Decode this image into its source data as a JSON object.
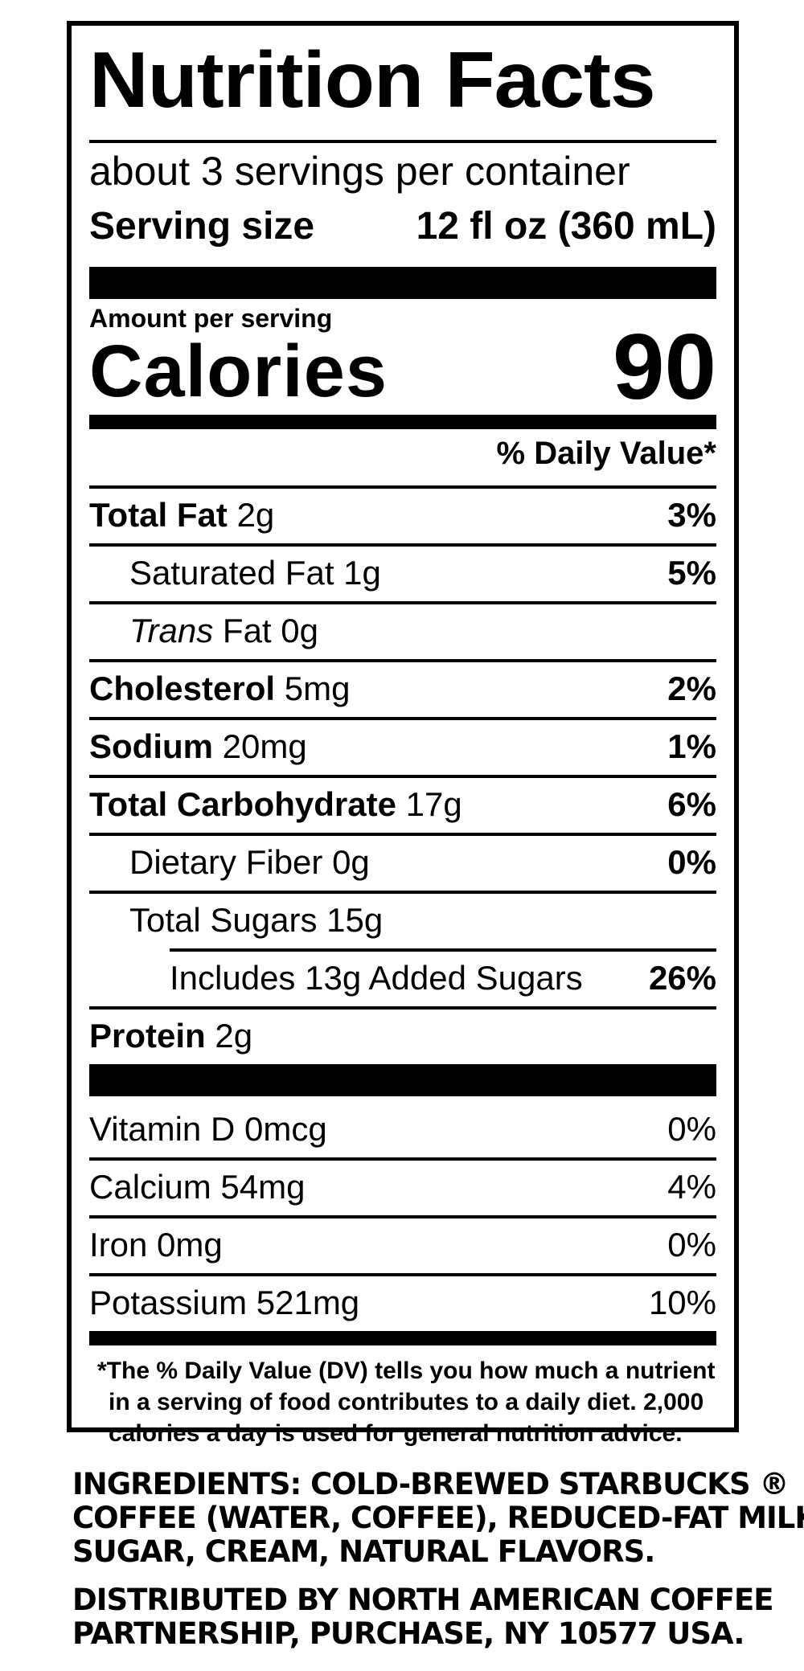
{
  "title": "Nutrition Facts",
  "servings_per_container": "about 3 servings per container",
  "serving_size": {
    "label": "Serving size",
    "value": "12 fl oz (360 mL)"
  },
  "amount_per_serving": "Amount per serving",
  "calories": {
    "label": "Calories",
    "value": "90"
  },
  "daily_value_header": "% Daily Value*",
  "nutrients": [
    {
      "name": "Total Fat",
      "amount": "2g",
      "dv": "3%"
    },
    {
      "name": "Saturated Fat",
      "amount": "1g",
      "dv": "5%"
    },
    {
      "name_italic": "Trans",
      "name": "Fat",
      "amount": "0g",
      "dv": ""
    },
    {
      "name": "Cholesterol",
      "amount": "5mg",
      "dv": "2%"
    },
    {
      "name": "Sodium",
      "amount": "20mg",
      "dv": "1%"
    },
    {
      "name": "Total Carbohydrate",
      "amount": "17g",
      "dv": "6%"
    },
    {
      "name": "Dietary Fiber",
      "amount": "0g",
      "dv": "0%"
    },
    {
      "name": "Total Sugars",
      "amount": "15g",
      "dv": ""
    },
    {
      "name": "Includes 13g Added Sugars",
      "amount": "",
      "dv": "26%"
    },
    {
      "name": "Protein",
      "amount": "2g",
      "dv": ""
    }
  ],
  "vitamins": [
    {
      "name": "Vitamin D",
      "amount": "0mcg",
      "dv": "0%"
    },
    {
      "name": "Calcium",
      "amount": "54mg",
      "dv": "4%"
    },
    {
      "name": "Iron",
      "amount": "0mg",
      "dv": "0%"
    },
    {
      "name": "Potassium",
      "amount": "521mg",
      "dv": "10%"
    }
  ],
  "footnote_lines": [
    "*The % Daily Value (DV) tells you how much a nutrient",
    "in a serving of food contributes to a daily diet. 2,000",
    "calories a day is used for general nutrition advice."
  ],
  "ingredients_lines": [
    "INGREDIENTS: COLD-BREWED STARBUCKS ®",
    "COFFEE (WATER, COFFEE), REDUCED-FAT MILK,",
    "SUGAR, CREAM, NATURAL FLAVORS."
  ],
  "distributed_lines": [
    "DISTRIBUTED BY NORTH AMERICAN COFFEE",
    "PARTNERSHIP, PURCHASE, NY 10577 USA."
  ]
}
